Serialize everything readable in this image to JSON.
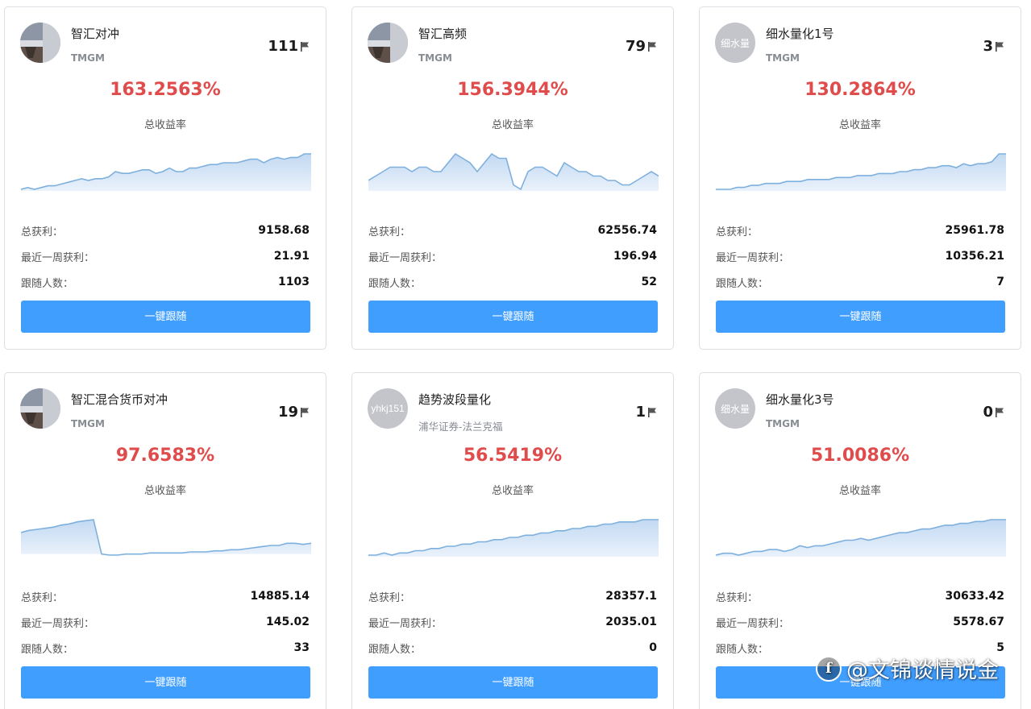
{
  "labels": {
    "rate_label": "总收益率",
    "total_profit_label": "总获利：",
    "week_profit_label": "最近一周获利：",
    "followers_label": "跟随人数：",
    "follow_button": "一键跟随"
  },
  "colors": {
    "accent_blue": "#409eff",
    "rate_red": "#e04c4c",
    "chart_line": "#7eb0de",
    "chart_fill": "#d5e6f7"
  },
  "cards": [
    {
      "name": "智汇对冲",
      "broker": "TMGM",
      "rank": "111",
      "avatar_type": "photo",
      "avatar_text": "",
      "rate": "163.2563%",
      "total_profit": "9158.68",
      "week_profit": "21.91",
      "followers": "1103",
      "chart_data": {
        "type": "area",
        "values": [
          10,
          11,
          10,
          11,
          12,
          12,
          13,
          14,
          15,
          16,
          15,
          16,
          16,
          17,
          20,
          19,
          19,
          20,
          21,
          21,
          19,
          20,
          22,
          20,
          20,
          22,
          22,
          23,
          24,
          24,
          25,
          25,
          25,
          26,
          27,
          27,
          25,
          27,
          28,
          27,
          28,
          28,
          30,
          30
        ]
      }
    },
    {
      "name": "智汇高频",
      "broker": "TMGM",
      "rank": "79",
      "avatar_type": "photo",
      "avatar_text": "",
      "rate": "156.3944%",
      "total_profit": "62556.74",
      "week_profit": "196.94",
      "followers": "52",
      "chart_data": {
        "type": "area",
        "values": [
          15,
          16,
          17,
          18,
          18,
          18,
          17,
          18,
          18,
          17,
          17,
          19,
          21,
          20,
          19,
          17,
          19,
          21,
          20,
          20,
          14,
          13,
          17,
          18,
          18,
          17,
          16,
          19,
          18,
          17,
          17,
          16,
          16,
          15,
          15,
          14,
          14,
          15,
          16,
          17,
          16
        ]
      }
    },
    {
      "name": "细水量化1号",
      "broker": "TMGM",
      "rank": "3",
      "avatar_type": "text",
      "avatar_text": "细水量",
      "rate": "130.2864%",
      "total_profit": "25961.78",
      "week_profit": "10356.21",
      "followers": "7",
      "chart_data": {
        "type": "area",
        "values": [
          5,
          5,
          5,
          6,
          6,
          7,
          7,
          8,
          8,
          8,
          9,
          9,
          9,
          10,
          10,
          10,
          10,
          11,
          11,
          11,
          12,
          12,
          12,
          13,
          13,
          13,
          14,
          14,
          15,
          15,
          16,
          16,
          17,
          17,
          16,
          18,
          17,
          18,
          18,
          19,
          23,
          23
        ]
      }
    },
    {
      "name": "智汇混合货币对冲",
      "broker": "TMGM",
      "rank": "19",
      "avatar_type": "photo",
      "avatar_text": "",
      "rate": "97.6583%",
      "total_profit": "14885.14",
      "week_profit": "145.02",
      "followers": "33",
      "chart_data": {
        "type": "area",
        "values": [
          50,
          52,
          53,
          54,
          55,
          57,
          58,
          60,
          61,
          62,
          30,
          29,
          29,
          30,
          30,
          30,
          31,
          31,
          31,
          31,
          31,
          32,
          32,
          32,
          33,
          33,
          34,
          34,
          35,
          36,
          37,
          38,
          38,
          40,
          40,
          39,
          40
        ]
      }
    },
    {
      "name": "趋势波段量化",
      "broker": "浦华证券-法兰克福",
      "rank": "1",
      "avatar_type": "text",
      "avatar_text": "yhkj151",
      "rate": "56.5419%",
      "total_profit": "28357.1",
      "week_profit": "2035.01",
      "followers": "0",
      "chart_data": {
        "type": "area",
        "values": [
          10,
          10,
          11,
          10,
          11,
          11,
          12,
          12,
          13,
          13,
          14,
          14,
          15,
          15,
          16,
          16,
          17,
          17,
          18,
          18,
          19,
          19,
          20,
          20,
          21,
          21,
          22,
          22,
          23,
          23,
          24,
          24,
          25,
          25,
          25,
          26,
          26,
          26
        ]
      }
    },
    {
      "name": "细水量化3号",
      "broker": "TMGM",
      "rank": "0",
      "avatar_type": "text",
      "avatar_text": "细水量",
      "rate": "51.0086%",
      "total_profit": "30633.42",
      "week_profit": "5578.67",
      "followers": "5",
      "chart_data": {
        "type": "area",
        "values": [
          10,
          11,
          11,
          10,
          11,
          12,
          12,
          13,
          13,
          12,
          13,
          15,
          14,
          15,
          15,
          16,
          17,
          18,
          18,
          19,
          18,
          19,
          20,
          21,
          22,
          22,
          23,
          24,
          24,
          25,
          26,
          26,
          27,
          27,
          28,
          28,
          29,
          29,
          29
        ]
      }
    }
  ],
  "watermark": {
    "text": "@文锦谈情说金",
    "logo_text": "f"
  }
}
